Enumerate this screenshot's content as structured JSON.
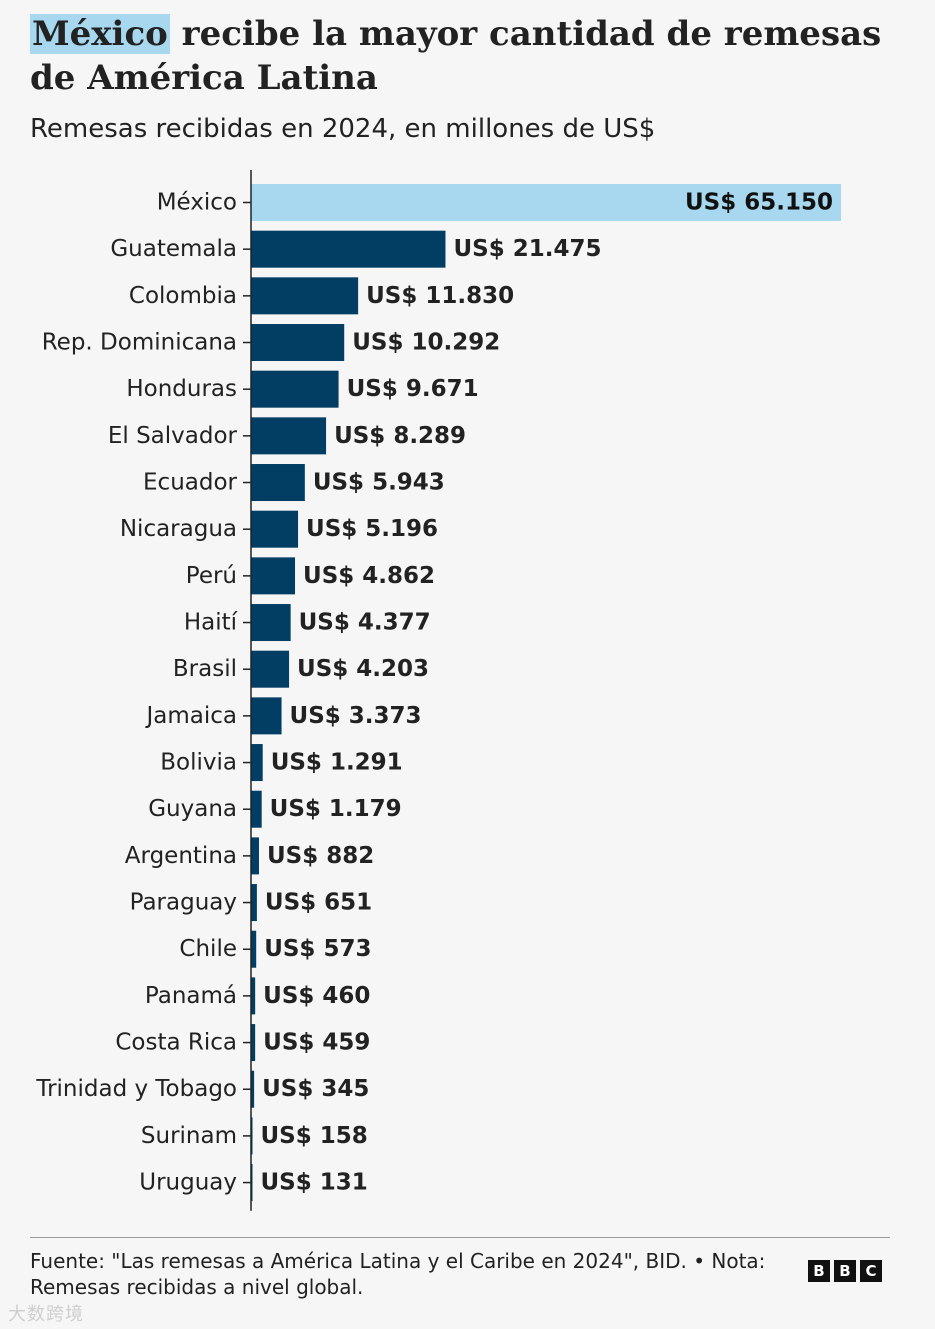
{
  "header": {
    "title_highlight": "México",
    "title_rest": " recibe la mayor cantidad de remesas de América Latina",
    "subtitle": "Remesas recibidas en 2024, en millones de US$"
  },
  "chart_data": {
    "type": "bar",
    "orientation": "horizontal",
    "title": "México recibe la mayor cantidad de remesas de América Latina",
    "subtitle": "Remesas recibidas en 2024, en millones de US$",
    "xlabel": "",
    "ylabel": "",
    "xlim": [
      0,
      65150
    ],
    "grid": false,
    "legend": "none",
    "categories": [
      "México",
      "Guatemala",
      "Colombia",
      "Rep. Dominicana",
      "Honduras",
      "El Salvador",
      "Ecuador",
      "Nicaragua",
      "Perú",
      "Haití",
      "Brasil",
      "Jamaica",
      "Bolivia",
      "Guyana",
      "Argentina",
      "Paraguay",
      "Chile",
      "Panamá",
      "Costa Rica",
      "Trinidad y Tobago",
      "Surinam",
      "Uruguay"
    ],
    "values": [
      65150,
      21475,
      11830,
      10292,
      9671,
      8289,
      5943,
      5196,
      4862,
      4377,
      4203,
      3373,
      1291,
      1179,
      882,
      651,
      573,
      460,
      459,
      345,
      158,
      131
    ],
    "value_labels": [
      "US$ 65.150",
      "US$ 21.475",
      "US$ 11.830",
      "US$ 10.292",
      "US$ 9.671",
      "US$ 8.289",
      "US$ 5.943",
      "US$ 5.196",
      "US$ 4.862",
      "US$ 4.377",
      "US$ 4.203",
      "US$ 3.373",
      "US$ 1.291",
      "US$ 1.179",
      "US$ 882",
      "US$ 651",
      "US$ 573",
      "US$ 460",
      "US$ 459",
      "US$ 345",
      "US$ 158",
      "US$ 131"
    ],
    "colors": {
      "highlight": "#a8d8ef",
      "bar": "#023e64",
      "axis": "#222222"
    },
    "highlight_category": "México"
  },
  "footer": {
    "source": "Fuente: \"Las remesas a América Latina y el Caribe en 2024\", BID. • Nota: Remesas recibidas a nivel global.",
    "logo_letters": [
      "B",
      "B",
      "C"
    ],
    "watermark": "大数跨境"
  }
}
